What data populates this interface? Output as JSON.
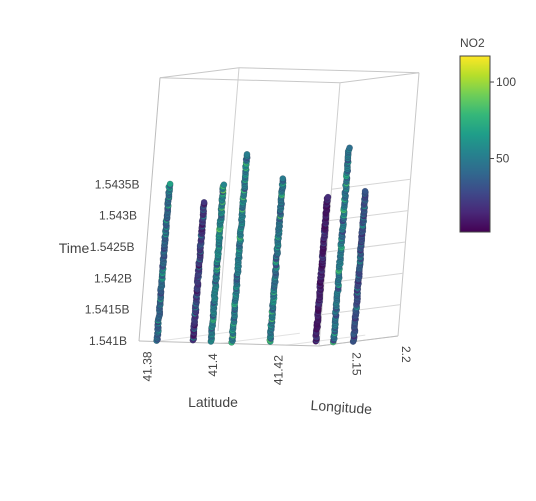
{
  "chart_data": {
    "type": "scatter3d",
    "title": "",
    "axes": {
      "latitude": {
        "title": "Latitude",
        "ticks": [
          "41.38",
          "41.4",
          "41.42"
        ],
        "range": [
          41.375,
          41.43
        ]
      },
      "longitude": {
        "title": "Longitude",
        "ticks": [
          "2.15",
          "2.2"
        ],
        "range": [
          2.12,
          2.2
        ]
      },
      "time": {
        "title": "Time",
        "ticks": [
          "1.541B",
          "1.5415B",
          "1.542B",
          "1.5425B",
          "1.543B",
          "1.5435B"
        ],
        "tick_values": [
          1.541,
          1.5415,
          1.542,
          1.5425,
          1.543,
          1.5435
        ],
        "range": [
          1.541,
          1.5436
        ]
      }
    },
    "colorbar": {
      "title": "NO2",
      "ticks": [
        "50",
        "100"
      ],
      "tick_values": [
        50,
        100
      ],
      "range": [
        2,
        117
      ],
      "colorscale": "Viridis"
    },
    "grid": true,
    "series": [
      {
        "latitude": 41.379,
        "longitude": 2.125,
        "time_range": [
          1.541,
          1.5435
        ],
        "no2_range": [
          20,
          75
        ],
        "dominant_no2": 40
      },
      {
        "latitude": 41.387,
        "longitude": 2.135,
        "time_range": [
          1.541,
          1.5432
        ],
        "no2_range": [
          5,
          55
        ],
        "dominant_no2": 22
      },
      {
        "latitude": 41.394,
        "longitude": 2.13,
        "time_range": [
          1.541,
          1.5435
        ],
        "no2_range": [
          30,
          90
        ],
        "dominant_no2": 55
      },
      {
        "latitude": 41.401,
        "longitude": 2.128,
        "time_range": [
          1.541,
          1.544
        ],
        "no2_range": [
          25,
          85
        ],
        "dominant_no2": 50
      },
      {
        "latitude": 41.409,
        "longitude": 2.14,
        "time_range": [
          1.541,
          1.5436
        ],
        "no2_range": [
          25,
          85
        ],
        "dominant_no2": 48
      },
      {
        "latitude": 41.42,
        "longitude": 2.15,
        "time_range": [
          1.541,
          1.5433
        ],
        "no2_range": [
          2,
          25
        ],
        "dominant_no2": 10
      },
      {
        "latitude": 41.426,
        "longitude": 2.148,
        "time_range": [
          1.541,
          1.5441
        ],
        "no2_range": [
          25,
          85
        ],
        "dominant_no2": 48
      },
      {
        "latitude": 41.43,
        "longitude": 2.155,
        "time_range": [
          1.541,
          1.5434
        ],
        "no2_range": [
          10,
          65
        ],
        "dominant_no2": 32
      }
    ]
  }
}
